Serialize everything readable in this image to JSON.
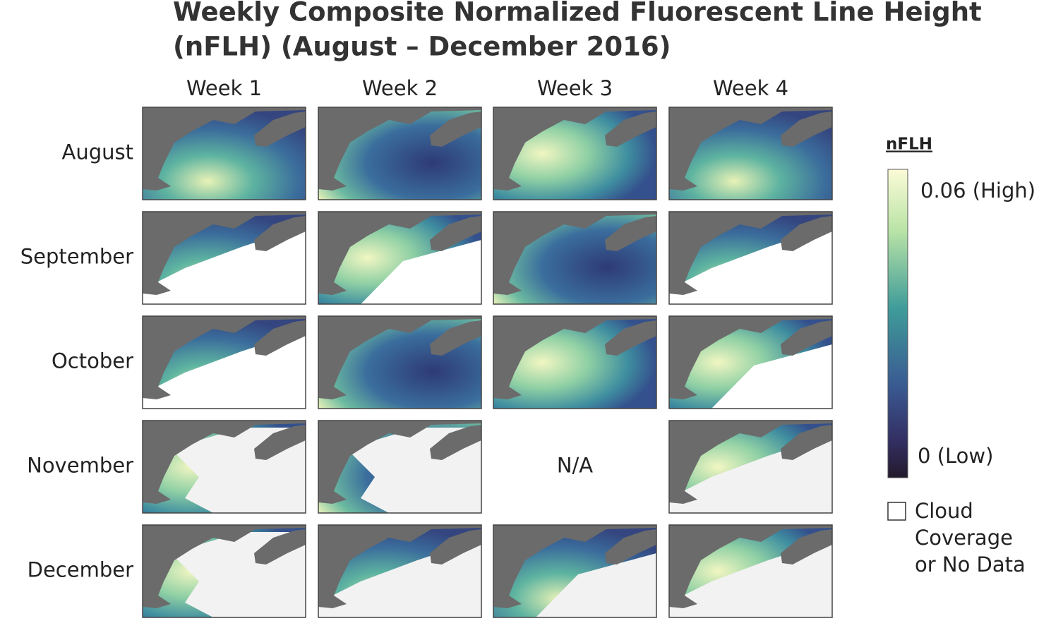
{
  "header": {
    "title_lines": [
      "Weekly Composite Normalized Fluorescent Line Height",
      "(nFLH) (August – December 2016)"
    ]
  },
  "columns": [
    "Week 1",
    "Week 2",
    "Week 3",
    "Week 4"
  ],
  "rows": [
    "August",
    "September",
    "October",
    "November",
    "December"
  ],
  "missing_cell": "N/A",
  "legend": {
    "title": "nFLH",
    "high_label": "0.06 (High)",
    "low_label": "0 (Low)",
    "cloud_label": [
      "Cloud",
      "Coverage",
      "or No Data"
    ]
  }
}
